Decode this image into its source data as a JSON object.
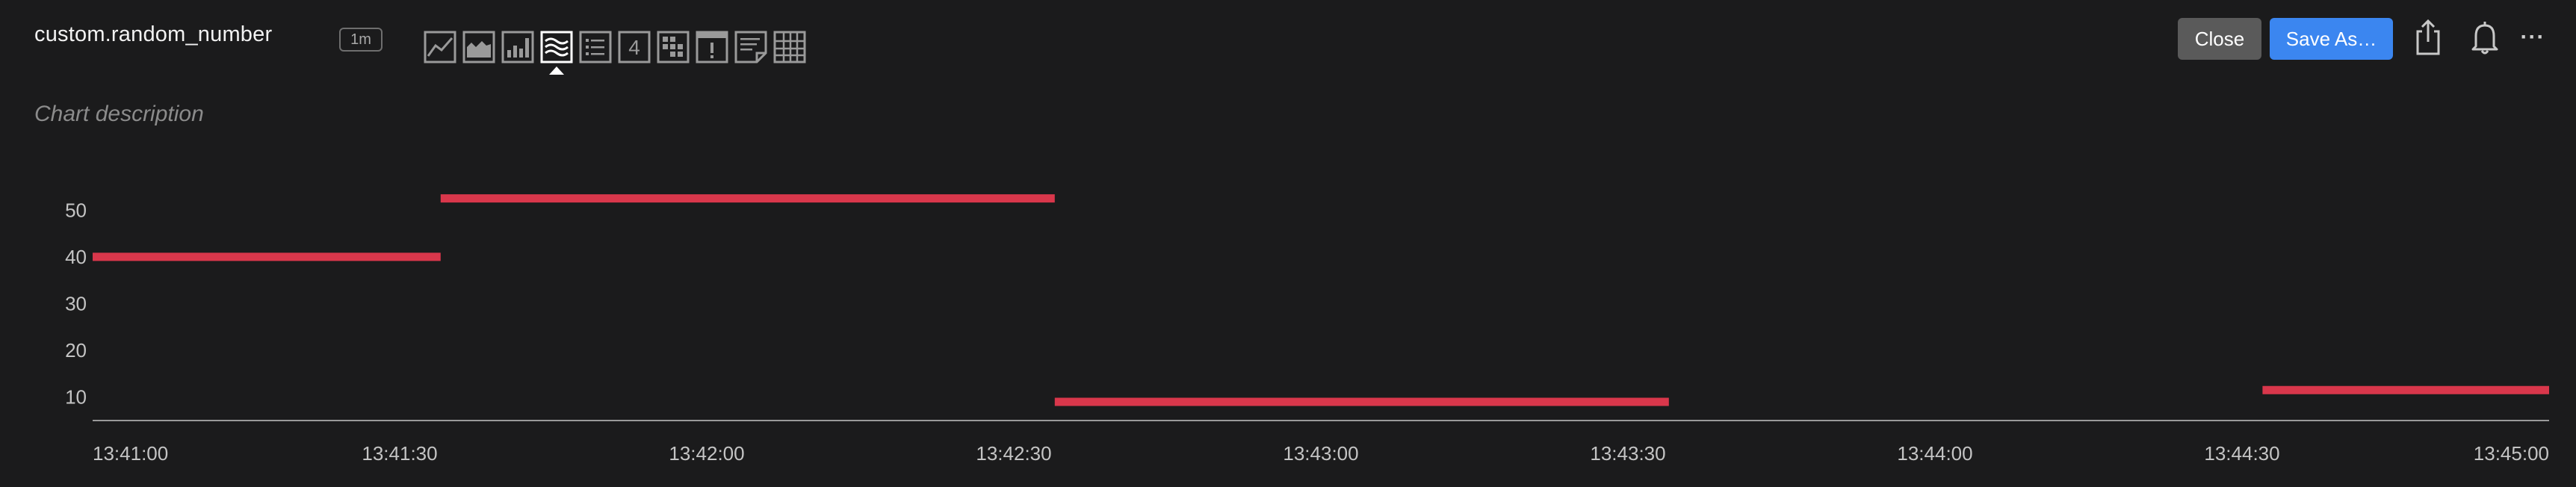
{
  "header": {
    "title": "custom.random_number",
    "resolution": "1m",
    "description_placeholder": "Chart description",
    "close_label": "Close",
    "save_label": "Save As…",
    "more_label": "···"
  },
  "viz_types": [
    {
      "name": "line-chart-icon",
      "active": false
    },
    {
      "name": "area-chart-icon",
      "active": false
    },
    {
      "name": "column-chart-icon",
      "active": false
    },
    {
      "name": "heatmap-icon",
      "active": true
    },
    {
      "name": "list-icon",
      "active": false
    },
    {
      "name": "single-value-icon",
      "label": "4",
      "active": false
    },
    {
      "name": "event-feed-icon",
      "active": false
    },
    {
      "name": "alert-icon",
      "active": false
    },
    {
      "name": "text-note-icon",
      "active": false
    },
    {
      "name": "table-icon",
      "active": false
    }
  ],
  "colors": {
    "series": "#d9374b",
    "axis": "#9a9a9a",
    "background": "#1b1b1c"
  },
  "chart_data": {
    "type": "line",
    "xlabel": "",
    "ylabel": "",
    "x_ticks": [
      "13:41:00",
      "13:41:30",
      "13:42:00",
      "13:42:30",
      "13:43:00",
      "13:43:30",
      "13:44:00",
      "13:44:30",
      "13:45:00"
    ],
    "y_ticks": [
      10,
      20,
      30,
      40,
      50
    ],
    "xlim": [
      "13:41:00",
      "13:45:00"
    ],
    "ylim": [
      5,
      55
    ],
    "grid": false,
    "series": [
      {
        "color": "#d9374b",
        "segments": [
          {
            "x_start": "13:41:00",
            "x_end": "13:41:34",
            "value": 40
          },
          {
            "x_start": "13:41:34",
            "x_end": "13:42:34",
            "value": 52.5
          },
          {
            "x_start": "13:42:34",
            "x_end": "13:43:34",
            "value": 9
          },
          {
            "x_start": "13:44:32",
            "x_end": "13:45:04",
            "value": 11.5
          }
        ]
      }
    ]
  }
}
